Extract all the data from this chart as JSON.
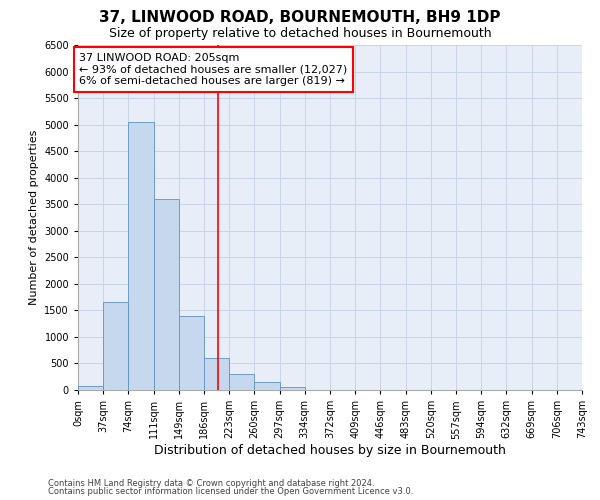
{
  "title1": "37, LINWOOD ROAD, BOURNEMOUTH, BH9 1DP",
  "title2": "Size of property relative to detached houses in Bournemouth",
  "xlabel": "Distribution of detached houses by size in Bournemouth",
  "ylabel": "Number of detached properties",
  "footnote1": "Contains HM Land Registry data © Crown copyright and database right 2024.",
  "footnote2": "Contains public sector information licensed under the Open Government Licence v3.0.",
  "bin_labels": [
    "0sqm",
    "37sqm",
    "74sqm",
    "111sqm",
    "149sqm",
    "186sqm",
    "223sqm",
    "260sqm",
    "297sqm",
    "334sqm",
    "372sqm",
    "409sqm",
    "446sqm",
    "483sqm",
    "520sqm",
    "557sqm",
    "594sqm",
    "632sqm",
    "669sqm",
    "706sqm",
    "743sqm"
  ],
  "bar_values": [
    75,
    1650,
    5050,
    3600,
    1400,
    600,
    300,
    150,
    50,
    0,
    0,
    0,
    0,
    0,
    0,
    0,
    0,
    0,
    0,
    0
  ],
  "bar_color": "#c5d8ee",
  "bar_edge_color": "#6090c8",
  "grid_color": "#c8d4e8",
  "background_color": "#e8eef8",
  "property_line_x": 205,
  "property_line_color": "red",
  "annotation_text1": "37 LINWOOD ROAD: 205sqm",
  "annotation_text2": "← 93% of detached houses are smaller (12,027)",
  "annotation_text3": "6% of semi-detached houses are larger (819) →",
  "annotation_box_color": "white",
  "annotation_box_edge_color": "red",
  "ylim": [
    0,
    6500
  ],
  "bin_width": 37,
  "num_bins": 20,
  "yticks": [
    0,
    500,
    1000,
    1500,
    2000,
    2500,
    3000,
    3500,
    4000,
    4500,
    5000,
    5500,
    6000,
    6500
  ],
  "title1_fontsize": 11,
  "title2_fontsize": 9,
  "xlabel_fontsize": 9,
  "ylabel_fontsize": 8,
  "tick_fontsize": 7,
  "annotation_fontsize": 8,
  "footnote_fontsize": 6
}
